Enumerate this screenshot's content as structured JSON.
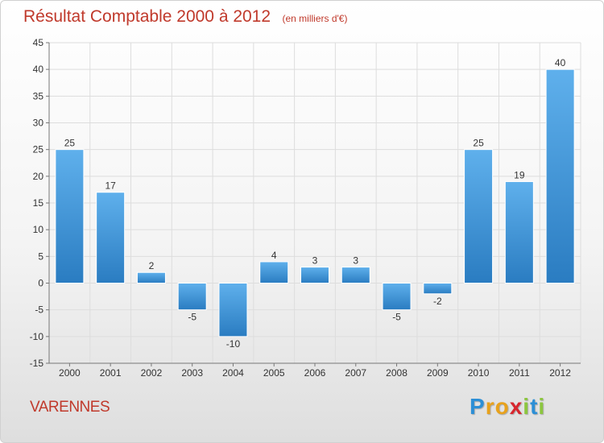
{
  "title": "Résultat Comptable 2000 à 2012",
  "unit": "(en milliers d'€)",
  "town": "VARENNES",
  "logo": {
    "letters": [
      "P",
      "r",
      "o",
      "x",
      "i",
      "t",
      "i"
    ],
    "colors": [
      "#2c8fd6",
      "#e8a21c",
      "#e8a21c",
      "#d7262e",
      "#8cc63f",
      "#2c8fd6",
      "#8cc63f"
    ]
  },
  "colors": {
    "bar_top": "#5fb0ec",
    "bar_bottom": "#2a7cc1",
    "title": "#c0392b",
    "grid": "#dddddd"
  },
  "chart_data": {
    "type": "bar",
    "title": "Résultat Comptable 2000 à 2012",
    "ylabel": "(en milliers d'€)",
    "xlabel": "",
    "categories": [
      "2000",
      "2001",
      "2002",
      "2003",
      "2004",
      "2005",
      "2006",
      "2007",
      "2008",
      "2009",
      "2010",
      "2011",
      "2012"
    ],
    "values": [
      25,
      17,
      2,
      -5,
      -10,
      4,
      3,
      3,
      -5,
      -2,
      25,
      19,
      40
    ],
    "value_labels": [
      "25",
      "17",
      "2",
      "-5",
      "-10",
      "4",
      "3",
      "3",
      "-5",
      "-2",
      "25",
      "19",
      "40"
    ],
    "ylim": [
      -15,
      45
    ],
    "yticks": [
      -15,
      -10,
      -5,
      0,
      5,
      10,
      15,
      20,
      25,
      30,
      35,
      40,
      45
    ],
    "grid": true
  }
}
